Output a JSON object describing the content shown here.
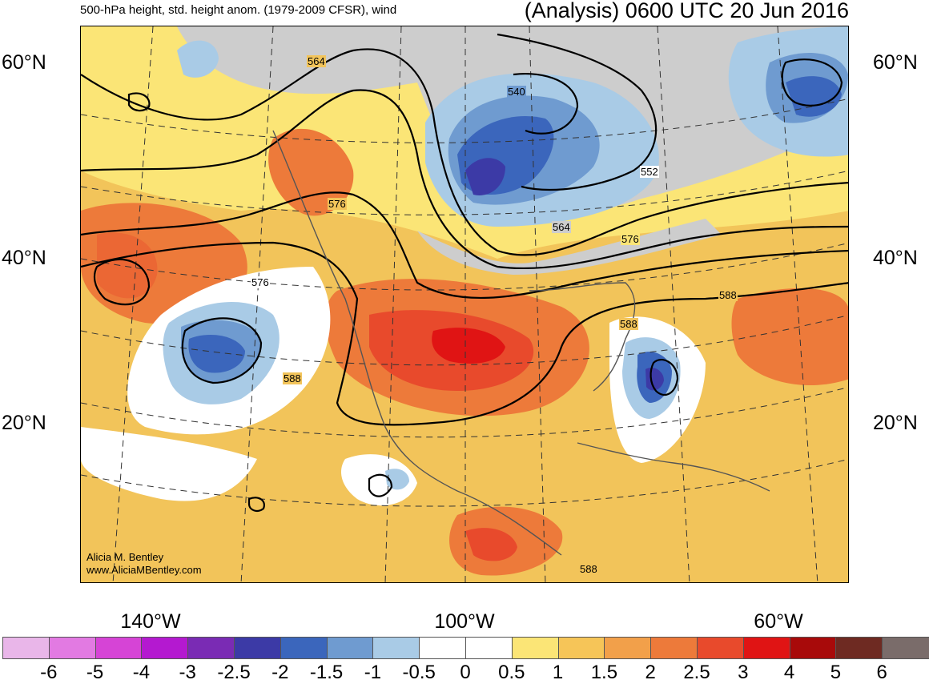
{
  "title_left": "500-hPa height, std. height anom. (1979-2009 CFSR), wind",
  "title_right": "(Analysis) 0600 UTC 20 Jun 2016",
  "lat_labels": [
    "60°N",
    "40°N",
    "20°N"
  ],
  "lon_labels": [
    "140°W",
    "100°W",
    "60°W"
  ],
  "contour_labels": [
    "564",
    "540",
    "552",
    "576",
    "576",
    "564",
    "576",
    "588",
    "588",
    "588",
    "588"
  ],
  "credit": {
    "name": "Alicia M. Bentley",
    "url": "www.AliciaMBentley.com"
  },
  "colorbar": {
    "colors": [
      "#e9b6e9",
      "#e27ae2",
      "#d644d6",
      "#b419d0",
      "#7a2bb4",
      "#3c3aa6",
      "#3b66bc",
      "#6f9bd0",
      "#a9cbe6",
      "#ffffff",
      "#ffffff",
      "#fbe576",
      "#f6c558",
      "#f2a04a",
      "#ed7a3a",
      "#e84a2c",
      "#e01414",
      "#a80a0a",
      "#6e2a22",
      "#7a6c6a"
    ],
    "labels": [
      "-6",
      "-5",
      "-4",
      "-3",
      "-2.5",
      "-2",
      "-1.5",
      "-1",
      "-0.5",
      "0",
      "0.5",
      "1",
      "1.5",
      "2",
      "2.5",
      "3",
      "4",
      "5",
      "6"
    ]
  }
}
